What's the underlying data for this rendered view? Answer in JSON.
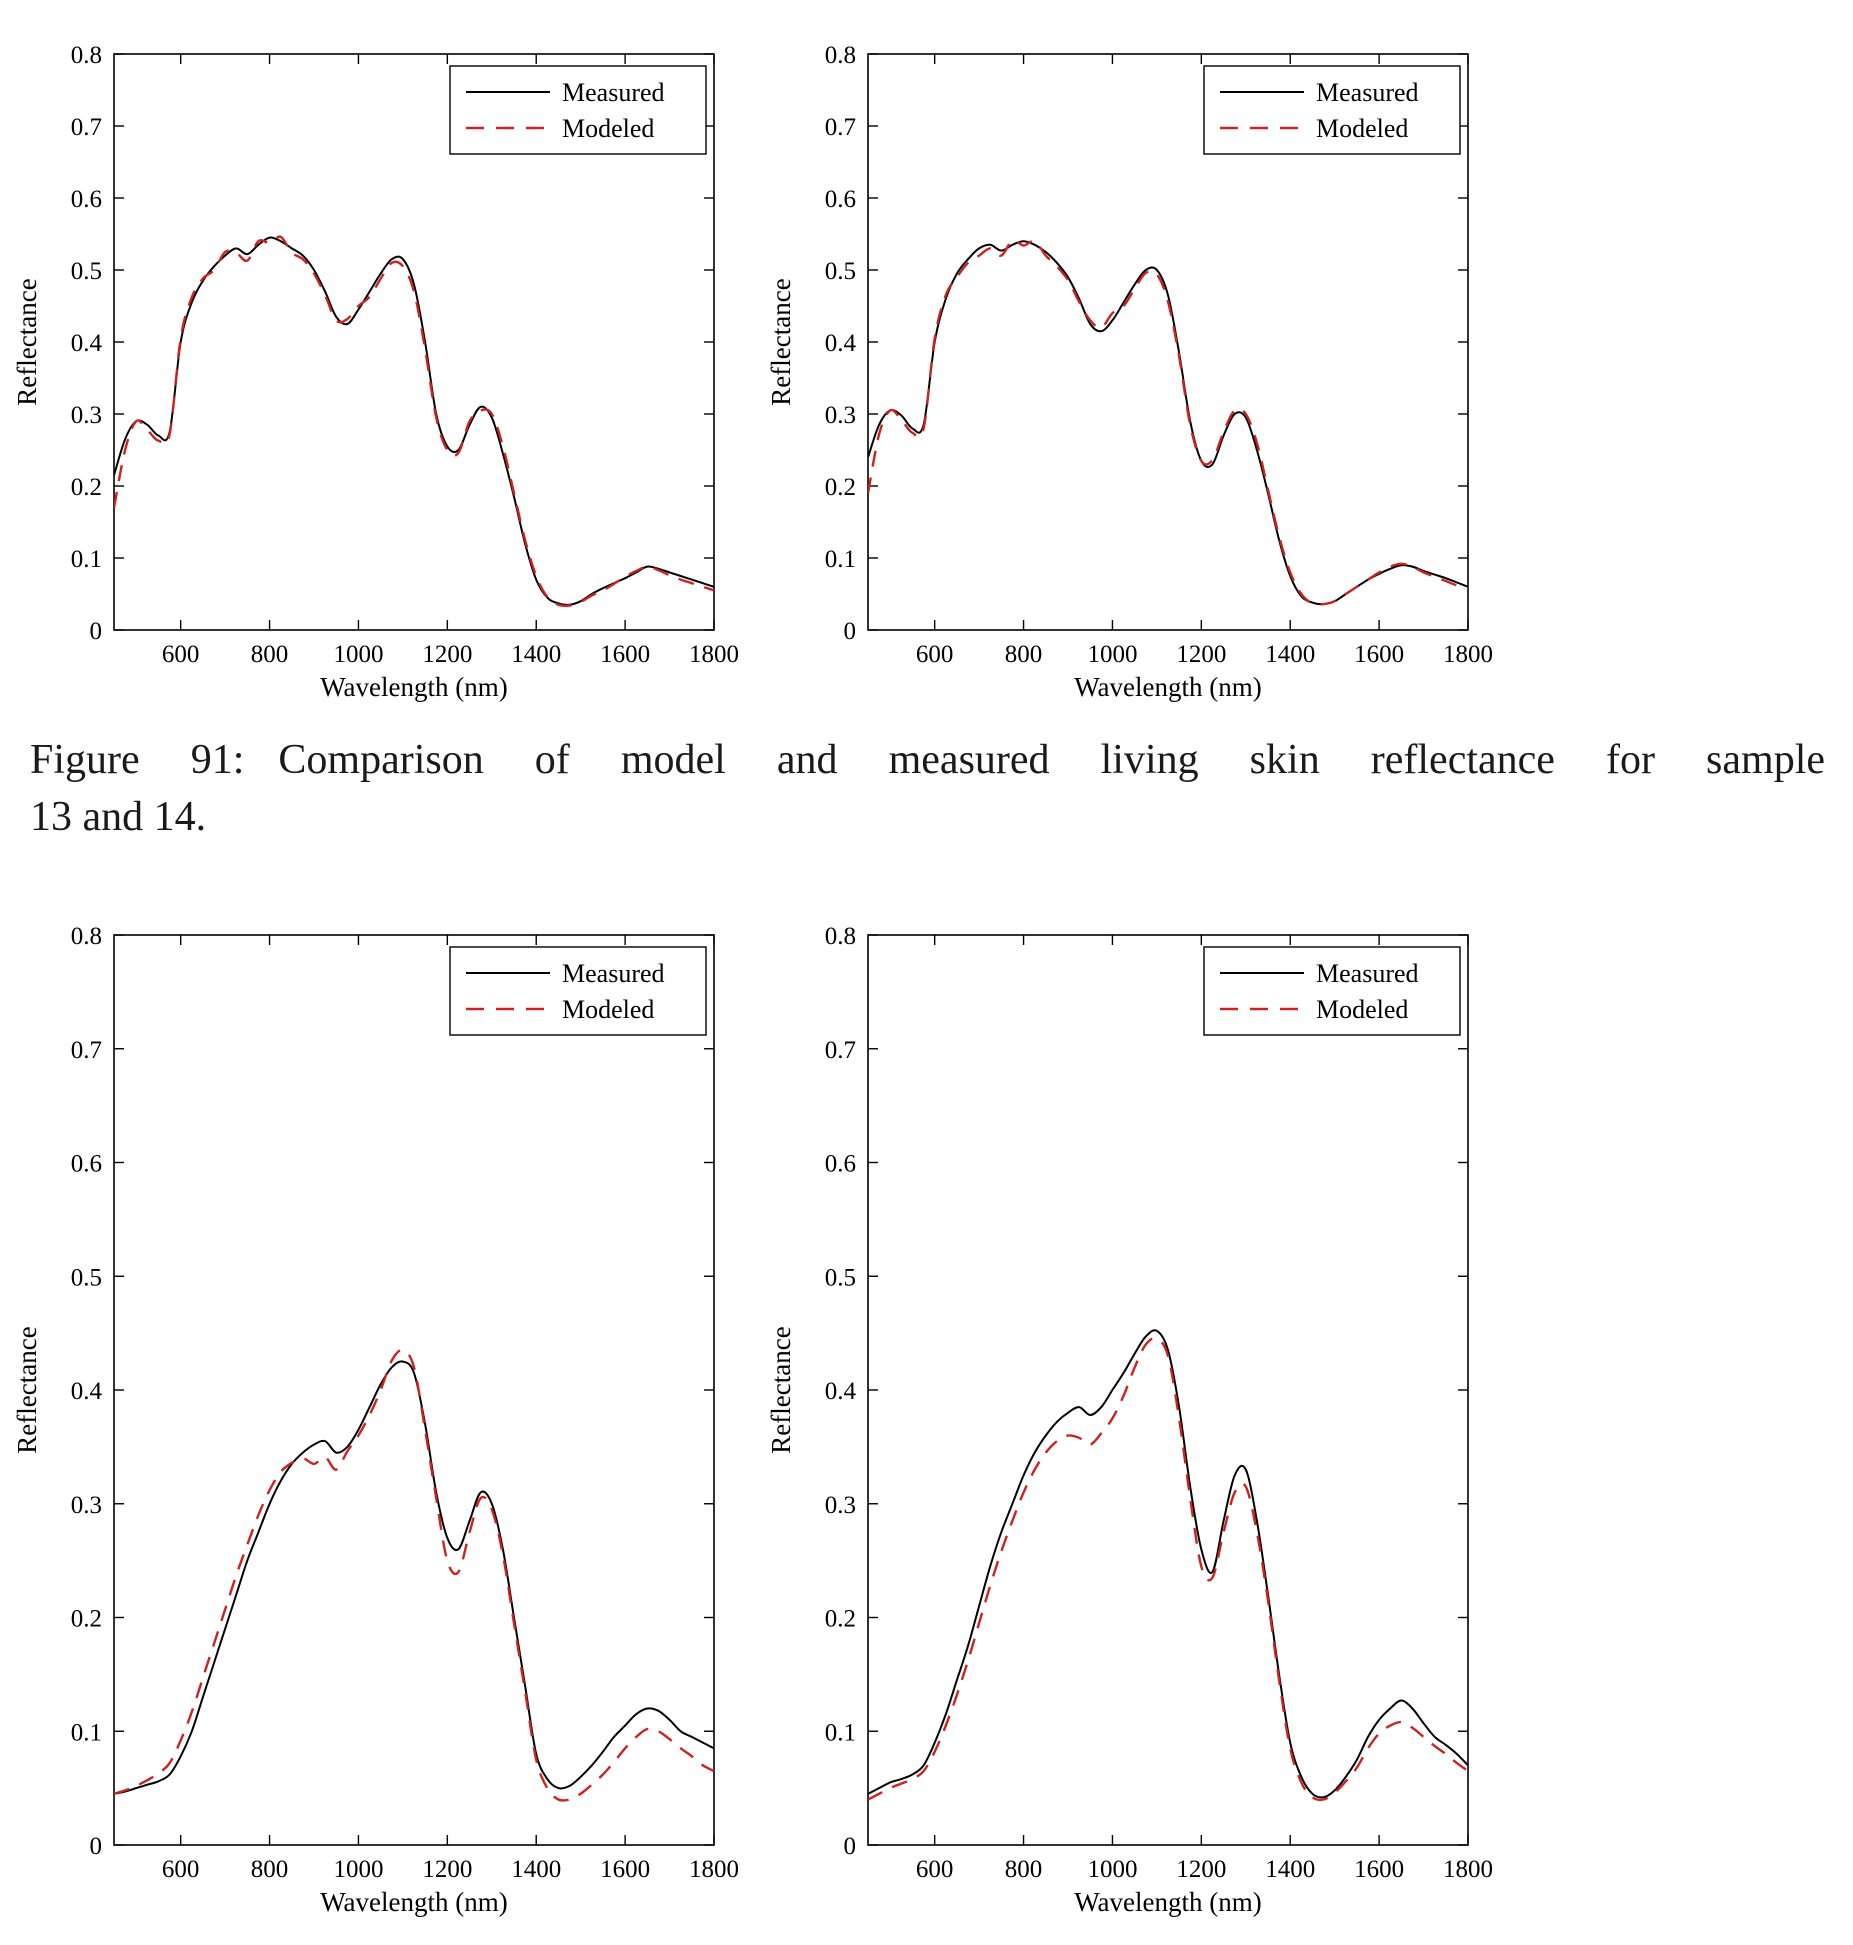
{
  "caption": {
    "label": "Figure 91:",
    "line1": "Comparison of model and measured living skin reflectance for sample",
    "line2": "13 and 14."
  },
  "colors": {
    "measured": "#000000",
    "modeled": "#cc2222",
    "axis": "#000000",
    "background": "#ffffff"
  },
  "chart_data": [
    {
      "id": "sample-13",
      "type": "line",
      "title": "",
      "xlabel": "Wavelength (nm)",
      "ylabel": "Reflectance",
      "xlim": [
        450,
        1800
      ],
      "ylim": [
        0,
        0.8
      ],
      "xticks": [
        600,
        800,
        1000,
        1200,
        1400,
        1600,
        1800
      ],
      "yticks": [
        0,
        0.1,
        0.2,
        0.3,
        0.4,
        0.5,
        0.6,
        0.7,
        0.8
      ],
      "grid": false,
      "legend": {
        "position": "top-right",
        "entries": [
          {
            "label": "Measured",
            "color": "#000000",
            "style": "solid"
          },
          {
            "label": "Modeled",
            "color": "#cc2222",
            "style": "dashed"
          }
        ]
      },
      "x": [
        450,
        475,
        500,
        525,
        550,
        575,
        600,
        625,
        650,
        675,
        700,
        725,
        750,
        775,
        800,
        825,
        850,
        875,
        900,
        925,
        950,
        975,
        1000,
        1025,
        1050,
        1075,
        1100,
        1125,
        1150,
        1175,
        1200,
        1225,
        1250,
        1275,
        1300,
        1325,
        1350,
        1375,
        1400,
        1425,
        1450,
        1475,
        1500,
        1525,
        1550,
        1575,
        1600,
        1625,
        1650,
        1675,
        1700,
        1725,
        1750,
        1775,
        1800
      ],
      "series": [
        {
          "name": "Measured",
          "color": "#000000",
          "style": "solid",
          "values": [
            0.215,
            0.265,
            0.29,
            0.285,
            0.27,
            0.275,
            0.4,
            0.455,
            0.485,
            0.505,
            0.52,
            0.53,
            0.522,
            0.535,
            0.545,
            0.54,
            0.53,
            0.52,
            0.5,
            0.47,
            0.435,
            0.425,
            0.445,
            0.47,
            0.495,
            0.515,
            0.515,
            0.48,
            0.4,
            0.3,
            0.255,
            0.25,
            0.285,
            0.31,
            0.295,
            0.245,
            0.185,
            0.12,
            0.07,
            0.045,
            0.037,
            0.035,
            0.04,
            0.05,
            0.058,
            0.065,
            0.072,
            0.08,
            0.088,
            0.085,
            0.08,
            0.075,
            0.07,
            0.065,
            0.06
          ]
        },
        {
          "name": "Modeled",
          "color": "#cc2222",
          "style": "dashed",
          "values": [
            0.17,
            0.25,
            0.29,
            0.278,
            0.263,
            0.272,
            0.405,
            0.462,
            0.488,
            0.5,
            0.525,
            0.524,
            0.513,
            0.54,
            0.538,
            0.546,
            0.524,
            0.515,
            0.495,
            0.465,
            0.43,
            0.432,
            0.45,
            0.463,
            0.488,
            0.51,
            0.505,
            0.47,
            0.39,
            0.295,
            0.25,
            0.246,
            0.29,
            0.305,
            0.3,
            0.255,
            0.19,
            0.125,
            0.075,
            0.046,
            0.035,
            0.034,
            0.039,
            0.048,
            0.055,
            0.064,
            0.074,
            0.082,
            0.088,
            0.083,
            0.076,
            0.07,
            0.065,
            0.06,
            0.055
          ]
        }
      ]
    },
    {
      "id": "sample-14",
      "type": "line",
      "title": "",
      "xlabel": "Wavelength (nm)",
      "ylabel": "Reflectance",
      "xlim": [
        450,
        1800
      ],
      "ylim": [
        0,
        0.8
      ],
      "xticks": [
        600,
        800,
        1000,
        1200,
        1400,
        1600,
        1800
      ],
      "yticks": [
        0,
        0.1,
        0.2,
        0.3,
        0.4,
        0.5,
        0.6,
        0.7,
        0.8
      ],
      "grid": false,
      "legend": {
        "position": "top-right",
        "entries": [
          {
            "label": "Measured",
            "color": "#000000",
            "style": "solid"
          },
          {
            "label": "Modeled",
            "color": "#cc2222",
            "style": "dashed"
          }
        ]
      },
      "x": [
        450,
        475,
        500,
        525,
        550,
        575,
        600,
        625,
        650,
        675,
        700,
        725,
        750,
        775,
        800,
        825,
        850,
        875,
        900,
        925,
        950,
        975,
        1000,
        1025,
        1050,
        1075,
        1100,
        1125,
        1150,
        1175,
        1200,
        1225,
        1250,
        1275,
        1300,
        1325,
        1350,
        1375,
        1400,
        1425,
        1450,
        1475,
        1500,
        1525,
        1550,
        1575,
        1600,
        1625,
        1650,
        1675,
        1700,
        1725,
        1750,
        1775,
        1800
      ],
      "series": [
        {
          "name": "Measured",
          "color": "#000000",
          "style": "solid",
          "values": [
            0.24,
            0.285,
            0.305,
            0.298,
            0.28,
            0.285,
            0.4,
            0.46,
            0.495,
            0.515,
            0.53,
            0.535,
            0.527,
            0.535,
            0.54,
            0.535,
            0.525,
            0.51,
            0.49,
            0.46,
            0.425,
            0.415,
            0.43,
            0.455,
            0.48,
            0.5,
            0.5,
            0.465,
            0.385,
            0.29,
            0.235,
            0.23,
            0.27,
            0.3,
            0.295,
            0.25,
            0.19,
            0.125,
            0.075,
            0.047,
            0.038,
            0.036,
            0.04,
            0.05,
            0.06,
            0.07,
            0.078,
            0.085,
            0.09,
            0.088,
            0.082,
            0.077,
            0.072,
            0.066,
            0.06
          ]
        },
        {
          "name": "Modeled",
          "color": "#cc2222",
          "style": "dashed",
          "values": [
            0.19,
            0.272,
            0.305,
            0.292,
            0.274,
            0.28,
            0.405,
            0.465,
            0.49,
            0.51,
            0.52,
            0.53,
            0.52,
            0.541,
            0.534,
            0.54,
            0.52,
            0.505,
            0.486,
            0.456,
            0.43,
            0.42,
            0.44,
            0.45,
            0.474,
            0.496,
            0.494,
            0.456,
            0.38,
            0.285,
            0.235,
            0.236,
            0.275,
            0.305,
            0.3,
            0.26,
            0.195,
            0.13,
            0.08,
            0.05,
            0.037,
            0.036,
            0.04,
            0.05,
            0.06,
            0.07,
            0.08,
            0.088,
            0.092,
            0.088,
            0.08,
            0.074,
            0.068,
            0.062,
            0.058
          ]
        }
      ]
    },
    {
      "id": "sample-15-left-bottom",
      "type": "line",
      "title": "",
      "xlabel": "Wavelength (nm)",
      "ylabel": "Reflectance",
      "xlim": [
        450,
        1800
      ],
      "ylim": [
        0,
        0.8
      ],
      "xticks": [
        600,
        800,
        1000,
        1200,
        1400,
        1600,
        1800
      ],
      "yticks": [
        0,
        0.1,
        0.2,
        0.3,
        0.4,
        0.5,
        0.6,
        0.7,
        0.8
      ],
      "grid": false,
      "legend": {
        "position": "top-right",
        "entries": [
          {
            "label": "Measured",
            "color": "#000000",
            "style": "solid"
          },
          {
            "label": "Modeled",
            "color": "#cc2222",
            "style": "dashed"
          }
        ]
      },
      "x": [
        450,
        475,
        500,
        525,
        550,
        575,
        600,
        625,
        650,
        675,
        700,
        725,
        750,
        775,
        800,
        825,
        850,
        875,
        900,
        925,
        950,
        975,
        1000,
        1025,
        1050,
        1075,
        1100,
        1125,
        1150,
        1175,
        1200,
        1225,
        1250,
        1275,
        1300,
        1325,
        1350,
        1375,
        1400,
        1425,
        1450,
        1475,
        1500,
        1525,
        1550,
        1575,
        1600,
        1625,
        1650,
        1675,
        1700,
        1725,
        1750,
        1775,
        1800
      ],
      "series": [
        {
          "name": "Measured",
          "color": "#000000",
          "style": "solid",
          "values": [
            0.045,
            0.047,
            0.05,
            0.053,
            0.056,
            0.062,
            0.078,
            0.1,
            0.13,
            0.16,
            0.19,
            0.22,
            0.25,
            0.275,
            0.3,
            0.32,
            0.335,
            0.345,
            0.352,
            0.355,
            0.345,
            0.35,
            0.365,
            0.385,
            0.405,
            0.42,
            0.425,
            0.415,
            0.37,
            0.31,
            0.27,
            0.26,
            0.285,
            0.31,
            0.3,
            0.26,
            0.2,
            0.14,
            0.08,
            0.058,
            0.05,
            0.052,
            0.06,
            0.07,
            0.082,
            0.095,
            0.105,
            0.115,
            0.12,
            0.118,
            0.11,
            0.1,
            0.095,
            0.09,
            0.085
          ]
        },
        {
          "name": "Modeled",
          "color": "#cc2222",
          "style": "dashed",
          "values": [
            0.045,
            0.048,
            0.052,
            0.057,
            0.063,
            0.072,
            0.092,
            0.117,
            0.147,
            0.177,
            0.207,
            0.237,
            0.264,
            0.29,
            0.312,
            0.328,
            0.336,
            0.34,
            0.335,
            0.341,
            0.33,
            0.346,
            0.36,
            0.378,
            0.4,
            0.426,
            0.435,
            0.42,
            0.365,
            0.305,
            0.25,
            0.24,
            0.275,
            0.305,
            0.295,
            0.255,
            0.195,
            0.135,
            0.075,
            0.05,
            0.04,
            0.04,
            0.045,
            0.053,
            0.062,
            0.073,
            0.085,
            0.095,
            0.102,
            0.1,
            0.093,
            0.085,
            0.078,
            0.07,
            0.065
          ]
        }
      ]
    },
    {
      "id": "sample-16-right-bottom",
      "type": "line",
      "title": "",
      "xlabel": "Wavelength (nm)",
      "ylabel": "Reflectance",
      "xlim": [
        450,
        1800
      ],
      "ylim": [
        0,
        0.8
      ],
      "xticks": [
        600,
        800,
        1000,
        1200,
        1400,
        1600,
        1800
      ],
      "yticks": [
        0,
        0.1,
        0.2,
        0.3,
        0.4,
        0.5,
        0.6,
        0.7,
        0.8
      ],
      "grid": false,
      "legend": {
        "position": "top-right",
        "entries": [
          {
            "label": "Measured",
            "color": "#000000",
            "style": "solid"
          },
          {
            "label": "Modeled",
            "color": "#cc2222",
            "style": "dashed"
          }
        ]
      },
      "x": [
        450,
        475,
        500,
        525,
        550,
        575,
        600,
        625,
        650,
        675,
        700,
        725,
        750,
        775,
        800,
        825,
        850,
        875,
        900,
        925,
        950,
        975,
        1000,
        1025,
        1050,
        1075,
        1100,
        1125,
        1150,
        1175,
        1200,
        1225,
        1250,
        1275,
        1300,
        1325,
        1350,
        1375,
        1400,
        1425,
        1450,
        1475,
        1500,
        1525,
        1550,
        1575,
        1600,
        1625,
        1650,
        1675,
        1700,
        1725,
        1750,
        1775,
        1800
      ],
      "series": [
        {
          "name": "Measured",
          "color": "#000000",
          "style": "solid",
          "values": [
            0.045,
            0.05,
            0.055,
            0.058,
            0.062,
            0.07,
            0.09,
            0.115,
            0.145,
            0.175,
            0.21,
            0.245,
            0.275,
            0.3,
            0.325,
            0.345,
            0.36,
            0.372,
            0.38,
            0.385,
            0.378,
            0.385,
            0.4,
            0.415,
            0.432,
            0.447,
            0.452,
            0.435,
            0.385,
            0.315,
            0.26,
            0.24,
            0.285,
            0.325,
            0.33,
            0.285,
            0.22,
            0.15,
            0.09,
            0.06,
            0.045,
            0.042,
            0.048,
            0.06,
            0.075,
            0.095,
            0.11,
            0.12,
            0.127,
            0.12,
            0.107,
            0.095,
            0.088,
            0.08,
            0.07
          ]
        },
        {
          "name": "Modeled",
          "color": "#cc2222",
          "style": "dashed",
          "values": [
            0.04,
            0.045,
            0.05,
            0.054,
            0.058,
            0.065,
            0.082,
            0.105,
            0.132,
            0.162,
            0.195,
            0.228,
            0.258,
            0.285,
            0.31,
            0.33,
            0.345,
            0.355,
            0.36,
            0.358,
            0.352,
            0.362,
            0.375,
            0.395,
            0.42,
            0.44,
            0.445,
            0.43,
            0.375,
            0.305,
            0.245,
            0.235,
            0.275,
            0.31,
            0.315,
            0.275,
            0.215,
            0.145,
            0.085,
            0.055,
            0.042,
            0.04,
            0.046,
            0.056,
            0.068,
            0.085,
            0.098,
            0.105,
            0.108,
            0.103,
            0.095,
            0.087,
            0.08,
            0.072,
            0.065
          ]
        }
      ]
    }
  ]
}
